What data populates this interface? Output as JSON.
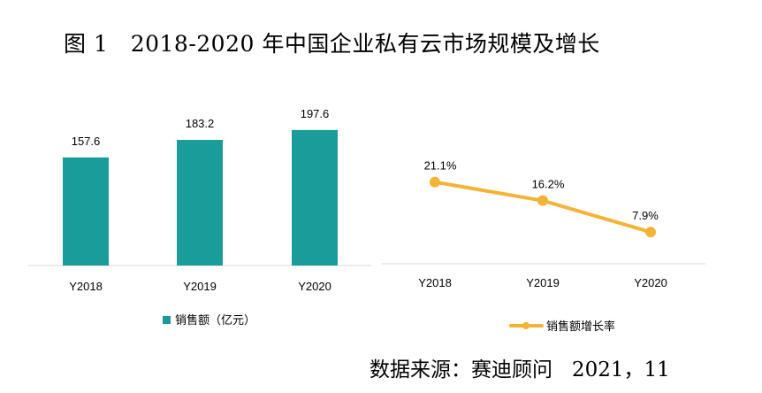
{
  "figure": {
    "title": "图 1   2018-2020 年中国企业私有云市场规模及增长",
    "source": "数据来源：赛迪顾问   2021，11"
  },
  "colors": {
    "bar": "#1a9c9a",
    "line": "#f5b335",
    "axis": "#d9d9d9"
  },
  "chart_data": [
    {
      "type": "bar",
      "categories": [
        "Y2018",
        "Y2019",
        "Y2020"
      ],
      "series": [
        {
          "name": "销售额（亿元）",
          "values": [
            157.6,
            183.2,
            197.6
          ]
        }
      ],
      "value_labels": [
        "157.6",
        "183.2",
        "197.6"
      ],
      "legend_position": "bottom-left",
      "grid": false
    },
    {
      "type": "line",
      "categories": [
        "Y2018",
        "Y2019",
        "Y2020"
      ],
      "series": [
        {
          "name": "销售额增长率",
          "values": [
            21.1,
            16.2,
            7.9
          ]
        }
      ],
      "value_labels": [
        "21.1%",
        "16.2%",
        "7.9%"
      ],
      "legend_position": "bottom-right",
      "grid": false
    }
  ]
}
